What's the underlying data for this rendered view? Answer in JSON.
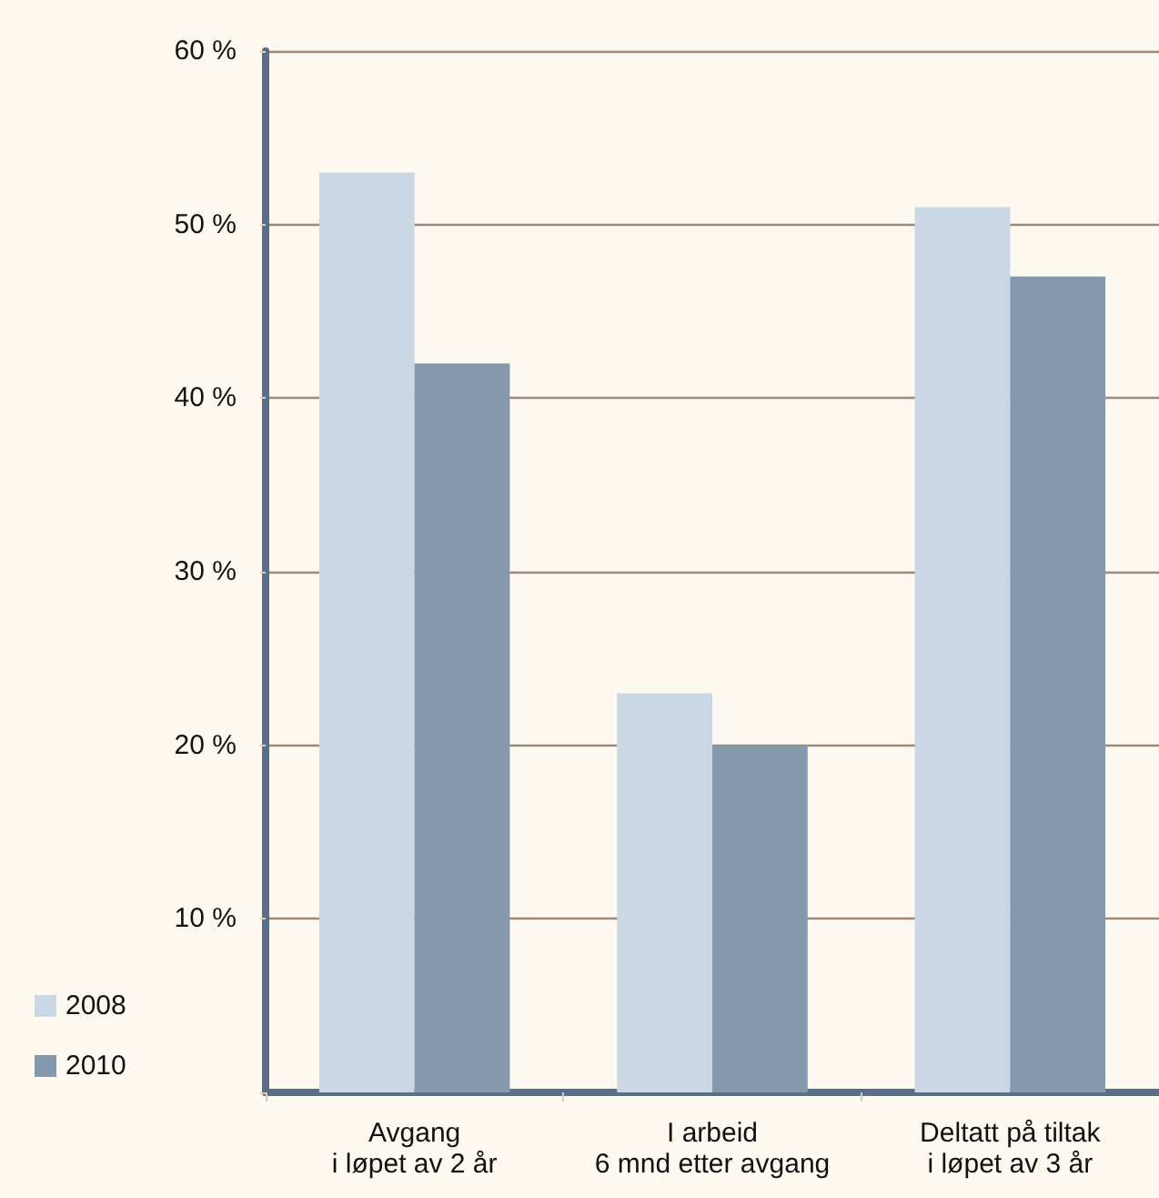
{
  "chart_data": {
    "type": "bar",
    "categories": [
      "Avgang\ni løpet av 2 år",
      "I arbeid\n6 mnd etter avgang",
      "Deltatt på tiltak\ni løpet av 3 år"
    ],
    "series": [
      {
        "name": "2008",
        "color": "#cad8e5",
        "values": [
          53,
          23,
          51
        ]
      },
      {
        "name": "2010",
        "color": "#8499ae",
        "values": [
          42,
          20,
          47
        ]
      }
    ],
    "ylim": [
      0,
      60
    ],
    "yticks": [
      {
        "value": 0,
        "label": null
      },
      {
        "value": 10,
        "label": "10 %"
      },
      {
        "value": 20,
        "label": "20 %"
      },
      {
        "value": 30,
        "label": "30 %"
      },
      {
        "value": 40,
        "label": "40 %"
      },
      {
        "value": 50,
        "label": "50 %"
      },
      {
        "value": 60,
        "label": "60 %"
      }
    ],
    "grid": "y",
    "legend": "bottom left"
  }
}
